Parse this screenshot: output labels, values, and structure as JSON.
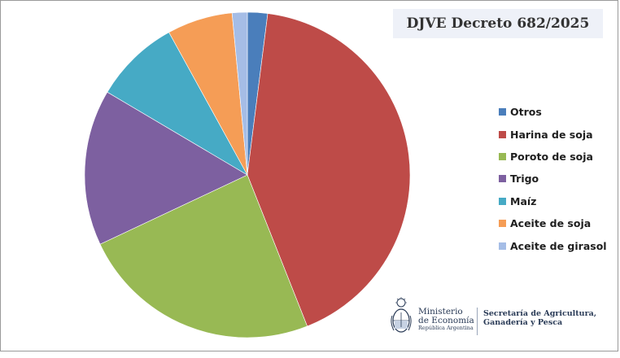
{
  "chart_data": {
    "type": "pie",
    "title": "DJVE Decreto 682/2025",
    "categories": [
      "Otros",
      "Harina de soja",
      "Poroto de soja",
      "Trigo",
      "Maíz",
      "Aceite de soja",
      "Aceite de girasol"
    ],
    "values": [
      2.0,
      42.0,
      24.0,
      15.5,
      8.5,
      6.5,
      1.5
    ],
    "colors": [
      "#4a7ebb",
      "#be4b48",
      "#98b954",
      "#7d60a0",
      "#46aac5",
      "#f59d56",
      "#a5bde6"
    ],
    "legend_position": "right"
  },
  "logo": {
    "ministry_line1": "Ministerio",
    "ministry_line2": "de Economía",
    "ministry_line3": "República Argentina",
    "secretaria_line1": "Secretaría de Agricultura,",
    "secretaria_line2": "Ganadería y Pesca"
  }
}
